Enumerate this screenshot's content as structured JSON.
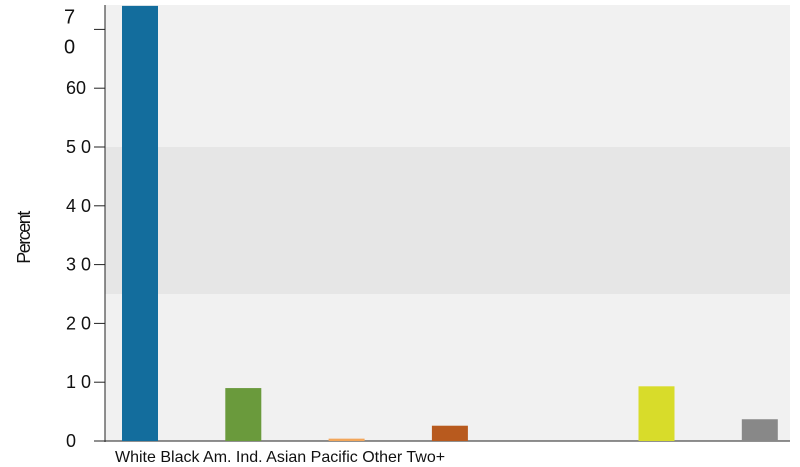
{
  "chart_data": {
    "type": "bar",
    "ylabel": "Percent",
    "xlabel": "",
    "title": "",
    "ylim": [
      0,
      74
    ],
    "grid": false,
    "categories": [
      "White",
      "Black",
      "Am. Ind.",
      "Asian",
      "Pacific",
      "Other",
      "Two+"
    ],
    "category_label_line": "White Black Am. Ind. Asian Pacific Other Two+",
    "values": [
      74,
      9,
      0.4,
      2.6,
      0,
      9.3,
      3.7
    ],
    "colors": [
      "#136d9d",
      "#6a9a3c",
      "#f2a65a",
      "#b85a1e",
      "#cfa0c8",
      "#d8dc2a",
      "#888888"
    ],
    "y_ticks": [
      {
        "value": 0,
        "label": "0"
      },
      {
        "value": 10,
        "label": "1 0"
      },
      {
        "value": 20,
        "label": "2 0"
      },
      {
        "value": 30,
        "label": "3 0"
      },
      {
        "value": 40,
        "label": "4 0"
      },
      {
        "value": 50,
        "label": "5 0"
      },
      {
        "value": 60,
        "label": "60"
      },
      {
        "value": 70,
        "label": "7\n0"
      }
    ],
    "shaded_band": [
      25,
      50
    ],
    "background_color": "#f1f1f1",
    "band_color": "#e6e6e6"
  }
}
